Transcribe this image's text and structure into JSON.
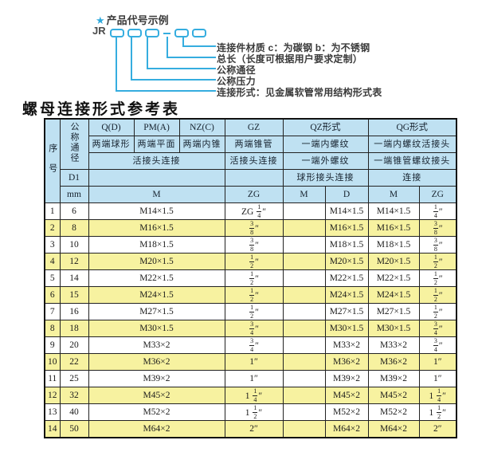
{
  "colors": {
    "accent_cyan": "#35addf",
    "header_blue": "#bfe1f2",
    "row_yellow": "#f7f2a0",
    "border": "#222222"
  },
  "diagram": {
    "star": "★",
    "title": "产品代号示例",
    "prefix": "JR",
    "labels": [
      "连接件材质  c：为碳钢  b：为不锈钢",
      "总长（长度可根据用户要求定制）",
      "公称通径",
      "公称压力",
      "连接形式：见金属软管常用结构形式表"
    ]
  },
  "table": {
    "title": "螺母连接形式参考表",
    "header": {
      "xuhao": "序号",
      "tongjing": "公称通径",
      "d1": "D1",
      "mm": "mm",
      "col_q": "Q(D)",
      "col_pm": "PM(A)",
      "col_nz": "NZ(C)",
      "col_gz": "GZ",
      "col_qz": "QZ形式",
      "col_qg": "QG形式",
      "q_desc": "两端球形",
      "pm_desc": "两端平面",
      "nz_desc": "两端内锥",
      "gz_desc": "两端锥管",
      "qz_desc1": "一端内螺纹",
      "qg_desc1": "一端内螺纹活接头",
      "join_left": "活接头连接",
      "gz_join": "活接头连接",
      "qz_desc2": "一端外螺纹",
      "qg_desc2": "一端锥管螺纹接头",
      "qz_join": "球形接头连接",
      "qg_join": "连接",
      "m_big": "M",
      "zg_big": "ZG",
      "qz_m": "M",
      "qz_d": "D",
      "qg_m": "M",
      "qg_zg": "ZG"
    },
    "rows": [
      {
        "no": "1",
        "mm": "6",
        "m": "M14×1.5",
        "zg": "ZG 1/4″",
        "qz_m": "",
        "qz_d": "M14×1.5",
        "qg_m": "M14×1.5",
        "qg_zg": "1/4″"
      },
      {
        "no": "2",
        "mm": "8",
        "m": "M16×1.5",
        "zg": "3/8″",
        "qz_m": "",
        "qz_d": "M16×1.5",
        "qg_m": "M16×1.5",
        "qg_zg": "3/8″"
      },
      {
        "no": "3",
        "mm": "10",
        "m": "M18×1.5",
        "zg": "3/8″",
        "qz_m": "",
        "qz_d": "M18×1.5",
        "qg_m": "M18×1.5",
        "qg_zg": "3/8″"
      },
      {
        "no": "4",
        "mm": "12",
        "m": "M20×1.5",
        "zg": "1/2″",
        "qz_m": "",
        "qz_d": "M20×1.5",
        "qg_m": "M20×1.5",
        "qg_zg": "1/2″"
      },
      {
        "no": "5",
        "mm": "14",
        "m": "M22×1.5",
        "zg": "1/2″",
        "qz_m": "",
        "qz_d": "M22×1.5",
        "qg_m": "M22×1.5",
        "qg_zg": "1/2″"
      },
      {
        "no": "6",
        "mm": "15",
        "m": "M24×1.5",
        "zg": "1/2″",
        "qz_m": "",
        "qz_d": "M24×1.5",
        "qg_m": "M24×1.5",
        "qg_zg": "1/2″"
      },
      {
        "no": "7",
        "mm": "16",
        "m": "M27×1.5",
        "zg": "1/2″",
        "qz_m": "",
        "qz_d": "M27×1.5",
        "qg_m": "M27×1.5",
        "qg_zg": "1/2″"
      },
      {
        "no": "8",
        "mm": "18",
        "m": "M30×1.5",
        "zg": "3/4″",
        "qz_m": "",
        "qz_d": "M30×1.5",
        "qg_m": "M30×1.5",
        "qg_zg": "3/4″"
      },
      {
        "no": "9",
        "mm": "20",
        "m": "M33×2",
        "zg": "3/4″",
        "qz_m": "",
        "qz_d": "M33×2",
        "qg_m": "M33×2",
        "qg_zg": "3/4″"
      },
      {
        "no": "10",
        "mm": "22",
        "m": "M36×2",
        "zg": "1″",
        "qz_m": "",
        "qz_d": "M36×2",
        "qg_m": "M36×2",
        "qg_zg": "1″"
      },
      {
        "no": "11",
        "mm": "25",
        "m": "M39×2",
        "zg": "1″",
        "qz_m": "",
        "qz_d": "M39×2",
        "qg_m": "M39×2",
        "qg_zg": "1″"
      },
      {
        "no": "12",
        "mm": "32",
        "m": "M45×2",
        "zg": "1 1/4″",
        "qz_m": "",
        "qz_d": "M45×2",
        "qg_m": "M45×2",
        "qg_zg": "1 1/4″"
      },
      {
        "no": "13",
        "mm": "40",
        "m": "M52×2",
        "zg": "1 1/2″",
        "qz_m": "",
        "qz_d": "M52×2",
        "qg_m": "M52×2",
        "qg_zg": "1 1/2″"
      },
      {
        "no": "14",
        "mm": "50",
        "m": "M64×2",
        "zg": "2″",
        "qz_m": "",
        "qz_d": "M64×2",
        "qg_m": "M64×2",
        "qg_zg": "2″"
      }
    ]
  }
}
